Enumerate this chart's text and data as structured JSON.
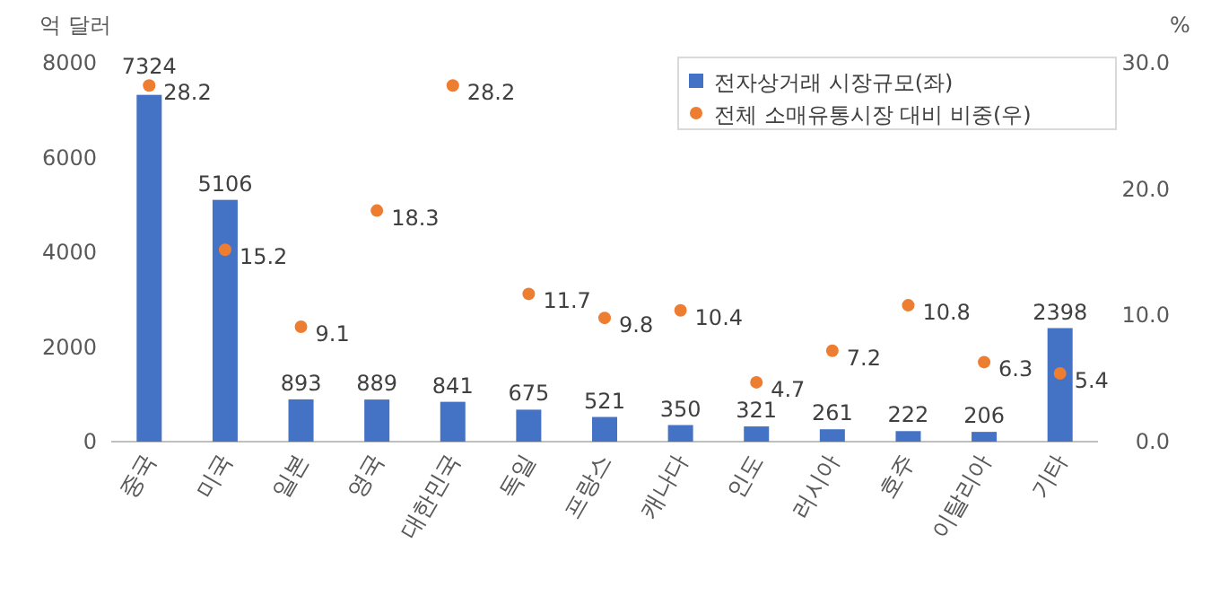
{
  "chart_data": {
    "type": "bar",
    "ylabel": "억 달러",
    "y2label": "%",
    "categories": [
      "중국",
      "미국",
      "일본",
      "영국",
      "대한민국",
      "독일",
      "프랑스",
      "캐나다",
      "인도",
      "러시아",
      "호주",
      "이탈리아",
      "기타"
    ],
    "series": [
      {
        "name": "전자상거래 시장규모(좌)",
        "color": "#4472c4",
        "values": [
          7324,
          5106,
          893,
          889,
          841,
          675,
          521,
          350,
          321,
          261,
          222,
          206,
          2398
        ]
      },
      {
        "name": "전체 소매유통시장 대비 비중(우)",
        "type": "scatter",
        "axis": "y2",
        "color": "#ed7d31",
        "marker": "circle",
        "values": [
          28.2,
          15.2,
          9.1,
          18.3,
          28.2,
          11.7,
          9.8,
          10.4,
          4.7,
          7.2,
          10.8,
          6.3,
          5.4
        ]
      }
    ],
    "ylim": [
      0,
      8000
    ],
    "yticks": [
      0,
      2000,
      4000,
      6000,
      8000
    ],
    "y2lim": [
      0,
      30
    ],
    "y2ticks": [
      {
        "value": 0,
        "label": "0.0"
      },
      {
        "value": 10,
        "label": "10.0"
      },
      {
        "value": 20,
        "label": "20.0"
      },
      {
        "value": 30,
        "label": "30.0"
      }
    ],
    "data_labels": true,
    "grid": false,
    "legend": "top right"
  }
}
